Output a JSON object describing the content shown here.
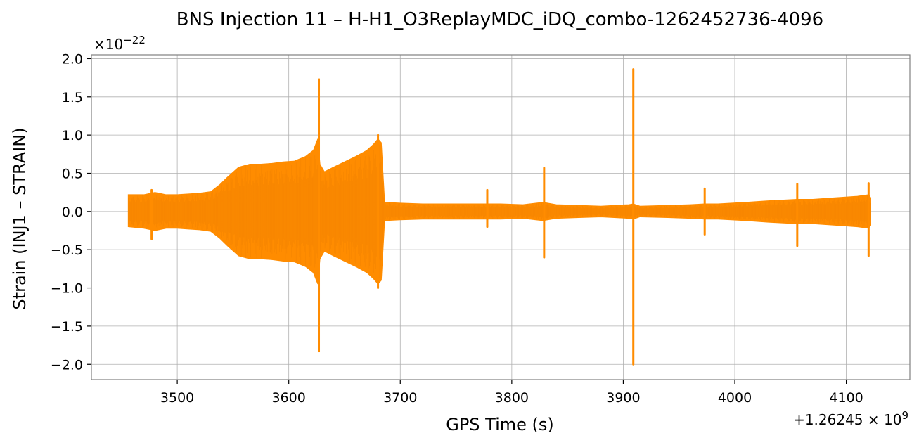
{
  "chart_data": {
    "type": "line",
    "title": "BNS Injection 11 – H-H1_O3ReplayMDC_iDQ_combo-1262452736-4096",
    "xlabel": "GPS Time (s)",
    "ylabel": "Strain (INJ1 – STRAIN)",
    "x_offset_label": "+1.26245 × 10^9",
    "y_scale_label": "×10^−22",
    "xlim": [
      3423,
      4157
    ],
    "ylim": [
      -2.2,
      2.05
    ],
    "xticks": [
      3500,
      3600,
      3700,
      3800,
      3900,
      4000,
      4100
    ],
    "yticks": [
      -2.0,
      -1.5,
      -1.0,
      -0.5,
      0.0,
      0.5,
      1.0,
      1.5,
      2.0
    ],
    "xtick_labels": [
      "3500",
      "3600",
      "3700",
      "3800",
      "3900",
      "4000",
      "4100"
    ],
    "ytick_labels": [
      "−2.0",
      "−1.5",
      "−1.0",
      "−0.5",
      "0.0",
      "0.5",
      "1.0",
      "1.5",
      "2.0"
    ],
    "grid": true,
    "line_color": "#ff8c00",
    "series": [
      {
        "envelope_x": [
          3456,
          3470,
          3480,
          3490,
          3500,
          3510,
          3520,
          3530,
          3538,
          3545,
          3555,
          3565,
          3575,
          3585,
          3595,
          3605,
          3615,
          3622,
          3626,
          3628,
          3632,
          3640,
          3650,
          3660,
          3670,
          3676,
          3680,
          3683,
          3686,
          3700,
          3720,
          3740,
          3760,
          3778,
          3790,
          3810,
          3828,
          3840,
          3860,
          3880,
          3905,
          3909,
          3915,
          3940,
          3960,
          3973,
          3985,
          4010,
          4030,
          4056,
          4070,
          4090,
          4110,
          4120,
          4122
        ],
        "envelope_upper": [
          0.22,
          0.22,
          0.25,
          0.22,
          0.22,
          0.23,
          0.24,
          0.26,
          0.35,
          0.45,
          0.58,
          0.62,
          0.62,
          0.63,
          0.65,
          0.66,
          0.72,
          0.8,
          0.95,
          0.62,
          0.52,
          0.58,
          0.65,
          0.72,
          0.8,
          0.88,
          0.95,
          0.9,
          0.12,
          0.11,
          0.1,
          0.1,
          0.1,
          0.1,
          0.1,
          0.09,
          0.12,
          0.09,
          0.08,
          0.07,
          0.09,
          0.1,
          0.07,
          0.08,
          0.09,
          0.1,
          0.1,
          0.12,
          0.14,
          0.16,
          0.16,
          0.18,
          0.2,
          0.22,
          0.18
        ],
        "envelope_lower": [
          -0.2,
          -0.22,
          -0.25,
          -0.22,
          -0.22,
          -0.23,
          -0.24,
          -0.26,
          -0.35,
          -0.45,
          -0.58,
          -0.62,
          -0.62,
          -0.63,
          -0.65,
          -0.66,
          -0.72,
          -0.8,
          -0.95,
          -0.62,
          -0.52,
          -0.58,
          -0.65,
          -0.72,
          -0.8,
          -0.88,
          -0.95,
          -0.9,
          -0.12,
          -0.11,
          -0.1,
          -0.1,
          -0.1,
          -0.1,
          -0.1,
          -0.09,
          -0.12,
          -0.09,
          -0.08,
          -0.07,
          -0.09,
          -0.1,
          -0.07,
          -0.08,
          -0.09,
          -0.1,
          -0.1,
          -0.12,
          -0.14,
          -0.16,
          -0.16,
          -0.18,
          -0.2,
          -0.22,
          -0.18
        ],
        "spikes": [
          {
            "x": 3477,
            "min": -0.36,
            "max": 0.28
          },
          {
            "x": 3627,
            "min": -1.83,
            "max": 1.73
          },
          {
            "x": 3680,
            "min": -1.0,
            "max": 1.0
          },
          {
            "x": 3778,
            "min": -0.2,
            "max": 0.28
          },
          {
            "x": 3829,
            "min": -0.6,
            "max": 0.57
          },
          {
            "x": 3909,
            "min": -2.0,
            "max": 1.86
          },
          {
            "x": 3973,
            "min": -0.3,
            "max": 0.3
          },
          {
            "x": 4056,
            "min": -0.45,
            "max": 0.36
          },
          {
            "x": 4120,
            "min": -0.58,
            "max": 0.37
          }
        ]
      }
    ]
  }
}
